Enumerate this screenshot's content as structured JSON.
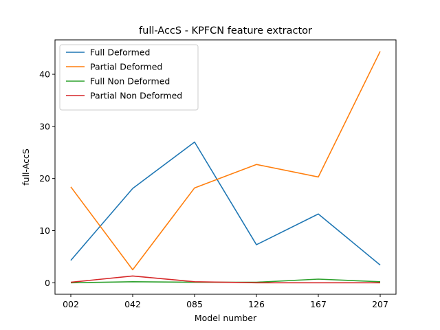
{
  "chart_data": {
    "type": "line",
    "title": "full-AccS - KPFCN feature extractor",
    "xlabel": "Model number",
    "ylabel": "full-AccS",
    "categories": [
      "002",
      "042",
      "085",
      "126",
      "167",
      "207"
    ],
    "ylim": [
      -2.2,
      46.6
    ],
    "yticks": [
      0,
      10,
      20,
      30,
      40
    ],
    "grid": false,
    "legend_position": "top-left",
    "series": [
      {
        "name": "Full Deformed",
        "color": "#1f77b4",
        "values": [
          4.3,
          18.1,
          27.0,
          7.3,
          13.2,
          3.4
        ]
      },
      {
        "name": "Partial Deformed",
        "color": "#ff7f0e",
        "values": [
          18.4,
          2.5,
          18.2,
          22.7,
          20.3,
          44.4
        ]
      },
      {
        "name": "Full Non Deformed",
        "color": "#2ca02c",
        "values": [
          0.0,
          0.2,
          0.1,
          0.1,
          0.7,
          0.2
        ]
      },
      {
        "name": "Partial Non Deformed",
        "color": "#d62728",
        "values": [
          0.1,
          1.3,
          0.2,
          0.0,
          0.0,
          0.0
        ]
      }
    ]
  }
}
